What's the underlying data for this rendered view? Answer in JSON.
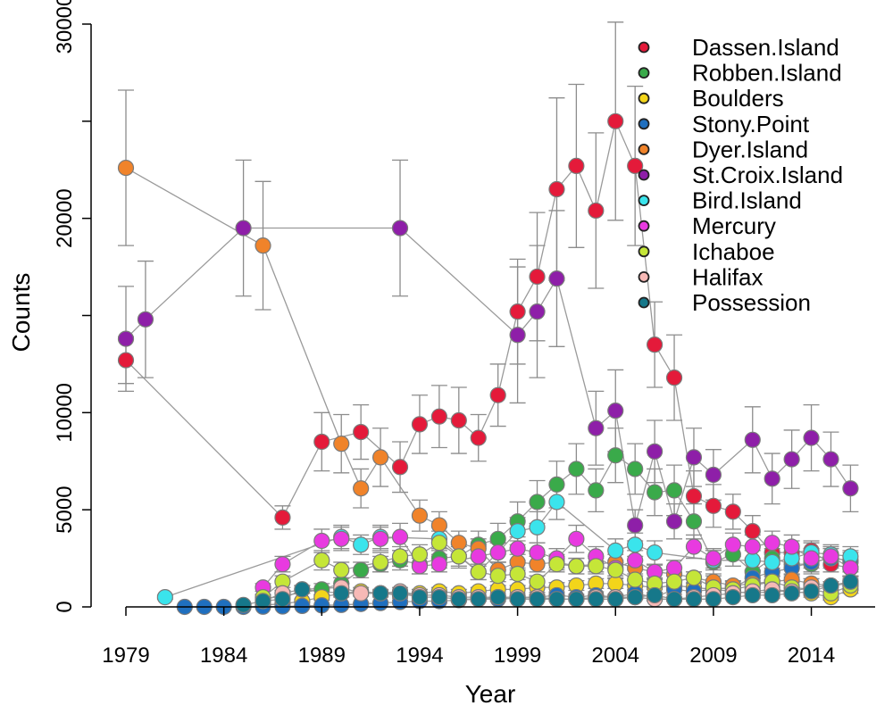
{
  "chart_data": {
    "type": "scatter",
    "title": "",
    "xlabel": "Year",
    "ylabel": "Counts",
    "xlim": [
      1979,
      2016
    ],
    "ylim": [
      0,
      30000
    ],
    "x_ticks": [
      "1979",
      "1984",
      "1989",
      "1994",
      "1999",
      "2004",
      "2009",
      "2014"
    ],
    "y_ticks": [
      "0",
      "5000",
      "10000",
      "20000",
      "30000"
    ],
    "legend_position": "top-right",
    "error_bars": true,
    "connecting_lines": true,
    "series": [
      {
        "name": "Dassen.Island",
        "color": "#e41a3a",
        "x": [
          1979,
          1987,
          1989,
          1991,
          1993,
          1994,
          1995,
          1996,
          1997,
          1998,
          1999,
          2000,
          2001,
          2002,
          2003,
          2004,
          2005,
          2006,
          2007,
          2008,
          2009,
          2010,
          2011,
          2012,
          2013,
          2014,
          2015,
          2016
        ],
        "y": [
          12700,
          4600,
          8500,
          9000,
          7200,
          9400,
          9800,
          9600,
          8700,
          10900,
          15200,
          17000,
          21500,
          22700,
          20400,
          25000,
          22700,
          13500,
          11800,
          5700,
          5200,
          4900,
          3900,
          2800,
          2800,
          2900,
          2200,
          2000
        ],
        "err": [
          1200,
          600,
          1500,
          1400,
          1300,
          1500,
          1600,
          1700,
          1200,
          1600,
          2700,
          3300,
          4700,
          4200,
          4000,
          5100,
          4100,
          2200,
          2200,
          1300,
          1100,
          900,
          800,
          600,
          600,
          500,
          400,
          400
        ]
      },
      {
        "name": "Robben.Island",
        "color": "#3aaa4a",
        "x": [
          1986,
          1989,
          1990,
          1991,
          1992,
          1993,
          1994,
          1995,
          1996,
          1997,
          1998,
          1999,
          2000,
          2001,
          2002,
          2003,
          2004,
          2005,
          2006,
          2007,
          2008,
          2009,
          2010,
          2011,
          2012,
          2013,
          2014,
          2015,
          2016
        ],
        "y": [
          400,
          900,
          1200,
          1900,
          2200,
          2400,
          2200,
          2500,
          2600,
          3200,
          3500,
          4400,
          5400,
          6300,
          7100,
          6000,
          7800,
          7100,
          5900,
          6000,
          4400,
          2300,
          2700,
          1800,
          2500,
          2200,
          2200,
          2600,
          2300
        ],
        "err": [
          200,
          300,
          300,
          400,
          400,
          500,
          500,
          500,
          600,
          700,
          800,
          1000,
          1100,
          1200,
          1300,
          1100,
          1400,
          1300,
          1200,
          1300,
          900,
          600,
          600,
          500,
          500,
          500,
          500,
          500,
          500
        ]
      },
      {
        "name": "Boulders",
        "color": "#f3d51a",
        "x": [
          1986,
          1987,
          1988,
          1989,
          1990,
          1991,
          1992,
          1993,
          1994,
          1995,
          1996,
          1997,
          1998,
          1999,
          2000,
          2001,
          2002,
          2003,
          2004,
          2005,
          2006,
          2007,
          2008,
          2009,
          2010,
          2011,
          2012,
          2013,
          2014,
          2015,
          2016
        ],
        "y": [
          100,
          150,
          300,
          500,
          700,
          800,
          700,
          600,
          700,
          800,
          700,
          800,
          900,
          900,
          1000,
          1000,
          1100,
          1200,
          1200,
          1100,
          1000,
          1100,
          1000,
          900,
          800,
          700,
          800,
          800,
          700,
          500,
          900
        ],
        "err": [
          50,
          60,
          100,
          150,
          200,
          200,
          200,
          150,
          200,
          200,
          200,
          200,
          200,
          200,
          250,
          250,
          250,
          250,
          250,
          250,
          250,
          250,
          250,
          200,
          200,
          200,
          200,
          200,
          200,
          150,
          200
        ]
      },
      {
        "name": "Stony.Point",
        "color": "#1f6fbf",
        "x": [
          1982,
          1983,
          1984,
          1985,
          1986,
          1987,
          1988,
          1989,
          1990,
          1991,
          1992,
          1993,
          1994,
          1995,
          1996,
          1997,
          1998,
          1999,
          2000,
          2001,
          2002,
          2003,
          2004,
          2005,
          2006,
          2007,
          2008,
          2009,
          2010,
          2011,
          2012,
          2013,
          2014,
          2015,
          2016
        ],
        "y": [
          0,
          0,
          0,
          0,
          10,
          20,
          50,
          80,
          100,
          150,
          200,
          250,
          300,
          300,
          350,
          400,
          400,
          450,
          500,
          600,
          500,
          600,
          500,
          700,
          500,
          900,
          800,
          900,
          1000,
          1500,
          1800,
          2000,
          2300,
          2500,
          2400
        ],
        "err": [
          10,
          10,
          10,
          10,
          20,
          20,
          30,
          40,
          50,
          60,
          80,
          100,
          100,
          100,
          100,
          120,
          120,
          150,
          150,
          180,
          150,
          180,
          150,
          200,
          150,
          250,
          200,
          250,
          300,
          350,
          400,
          450,
          500,
          500,
          500
        ]
      },
      {
        "name": "Dyer.Island",
        "color": "#f0832a",
        "x": [
          1979,
          1986,
          1990,
          1991,
          1992,
          1994,
          1995,
          1996,
          1997,
          1998,
          1999,
          2000,
          2001,
          2002,
          2003,
          2004,
          2005,
          2006,
          2007,
          2008,
          2009,
          2010,
          2011,
          2012,
          2013,
          2014,
          2015,
          2016
        ],
        "y": [
          22600,
          18600,
          8400,
          6100,
          7700,
          4700,
          4200,
          3300,
          3000,
          1900,
          2300,
          2200,
          2300,
          2100,
          2200,
          2300,
          2000,
          1800,
          1700,
          1500,
          1300,
          1100,
          1200,
          1300,
          1400,
          1200,
          1100,
          1200
        ],
        "err": [
          4000,
          3300,
          1500,
          1000,
          1500,
          800,
          700,
          600,
          500,
          400,
          400,
          400,
          400,
          400,
          400,
          400,
          400,
          350,
          350,
          300,
          300,
          250,
          250,
          250,
          250,
          250,
          200,
          250
        ]
      },
      {
        "name": "St.Croix.Island",
        "color": "#8e1fa8",
        "x": [
          1979,
          1980,
          1985,
          1993,
          1999,
          2000,
          2001,
          2003,
          2004,
          2005,
          2006,
          2007,
          2008,
          2009,
          2011,
          2012,
          2013,
          2014,
          2015,
          2016
        ],
        "y": [
          13800,
          14800,
          19500,
          19500,
          14000,
          15200,
          16900,
          9200,
          10100,
          4200,
          8000,
          4400,
          7700,
          6800,
          8600,
          6600,
          7600,
          8700,
          7600,
          6100
        ],
        "err": [
          2700,
          3000,
          3500,
          3500,
          3500,
          3400,
          3500,
          1900,
          2100,
          800,
          1600,
          900,
          1500,
          1300,
          1700,
          1300,
          1500,
          1700,
          1400,
          1200
        ]
      },
      {
        "name": "Bird.Island",
        "color": "#3ae4ec",
        "x": [
          1981,
          1990,
          1991,
          1992,
          1995,
          1997,
          1998,
          1999,
          2000,
          2001,
          2004,
          2005,
          2006,
          2009,
          2011,
          2012,
          2013,
          2014,
          2015,
          2016
        ],
        "y": [
          500,
          3600,
          3200,
          3600,
          3500,
          1800,
          2800,
          3900,
          4100,
          5400,
          2900,
          3200,
          2800,
          2400,
          2400,
          2300,
          2500,
          2800,
          2700,
          2600
        ],
        "err": [
          100,
          600,
          500,
          600,
          600,
          400,
          500,
          700,
          800,
          900,
          600,
          600,
          600,
          500,
          500,
          500,
          500,
          500,
          500,
          500
        ]
      },
      {
        "name": "Mercury",
        "color": "#e83ae0",
        "x": [
          1986,
          1987,
          1989,
          1990,
          1992,
          1993,
          1994,
          1995,
          1997,
          1998,
          1999,
          2000,
          2001,
          2002,
          2003,
          2004,
          2005,
          2006,
          2007,
          2008,
          2009,
          2010,
          2011,
          2012,
          2013,
          2014,
          2015,
          2016
        ],
        "y": [
          1000,
          2200,
          3400,
          3500,
          3500,
          3600,
          2100,
          2200,
          2600,
          2800,
          3000,
          2800,
          2500,
          3500,
          2600,
          2000,
          2400,
          1800,
          2000,
          3100,
          2500,
          3200,
          3100,
          3300,
          3100,
          2500,
          2600,
          2000
        ],
        "err": [
          200,
          400,
          600,
          600,
          600,
          700,
          400,
          400,
          500,
          500,
          600,
          500,
          500,
          700,
          500,
          400,
          500,
          400,
          400,
          600,
          500,
          600,
          600,
          600,
          600,
          500,
          500,
          400
        ]
      },
      {
        "name": "Ichaboe",
        "color": "#c5e638",
        "x": [
          1986,
          1987,
          1989,
          1990,
          1992,
          1993,
          1994,
          1995,
          1996,
          1997,
          1998,
          1999,
          2000,
          2001,
          2002,
          2003,
          2004,
          2005,
          2006,
          2007,
          2008,
          2009,
          2010,
          2011,
          2012,
          2013,
          2014,
          2015,
          2016
        ],
        "y": [
          500,
          1300,
          2400,
          1900,
          2300,
          2600,
          2700,
          3300,
          2600,
          1800,
          1600,
          1700,
          1300,
          2200,
          2100,
          2100,
          1900,
          1400,
          1200,
          1300,
          1500,
          1000,
          900,
          1100,
          1300,
          1000,
          900,
          700,
          1100
        ],
        "err": [
          150,
          300,
          500,
          400,
          500,
          500,
          500,
          600,
          500,
          400,
          300,
          300,
          300,
          400,
          400,
          400,
          400,
          300,
          300,
          300,
          300,
          250,
          200,
          250,
          300,
          250,
          200,
          200,
          250
        ]
      },
      {
        "name": "Halifax",
        "color": "#f7b9b6",
        "x": [
          1986,
          1987,
          1988,
          1990,
          1991,
          1992,
          1993,
          1994,
          1995,
          1996,
          1997,
          1998,
          1999,
          2000,
          2001,
          2002,
          2003,
          2004,
          2005,
          2006,
          2007,
          2008,
          2009,
          2010,
          2011,
          2012,
          2013,
          2014,
          2015,
          2016
        ],
        "y": [
          300,
          700,
          900,
          1000,
          700,
          700,
          800,
          600,
          600,
          500,
          500,
          500,
          500,
          500,
          400,
          400,
          500,
          500,
          500,
          400,
          400,
          500,
          600,
          700,
          800,
          900,
          800,
          1000,
          1100,
          1300
        ],
        "err": [
          100,
          150,
          200,
          200,
          150,
          150,
          200,
          150,
          150,
          100,
          100,
          100,
          100,
          100,
          100,
          100,
          100,
          100,
          100,
          100,
          100,
          100,
          150,
          150,
          150,
          200,
          150,
          200,
          200,
          250
        ]
      },
      {
        "name": "Possession",
        "color": "#16788a",
        "x": [
          1985,
          1986,
          1987,
          1988,
          1990,
          1992,
          1993,
          1994,
          1995,
          1996,
          1997,
          1998,
          1999,
          2000,
          2001,
          2002,
          2003,
          2004,
          2005,
          2006,
          2007,
          2008,
          2009,
          2010,
          2011,
          2012,
          2013,
          2014,
          2015,
          2016
        ],
        "y": [
          100,
          300,
          400,
          900,
          700,
          700,
          700,
          500,
          500,
          400,
          400,
          500,
          400,
          400,
          400,
          400,
          400,
          400,
          500,
          600,
          400,
          400,
          400,
          500,
          600,
          600,
          700,
          800,
          1100,
          1300
        ],
        "err": [
          50,
          100,
          100,
          200,
          150,
          150,
          150,
          100,
          100,
          100,
          100,
          100,
          100,
          100,
          100,
          100,
          100,
          100,
          100,
          150,
          100,
          100,
          100,
          100,
          150,
          150,
          150,
          200,
          200,
          250
        ]
      }
    ]
  }
}
